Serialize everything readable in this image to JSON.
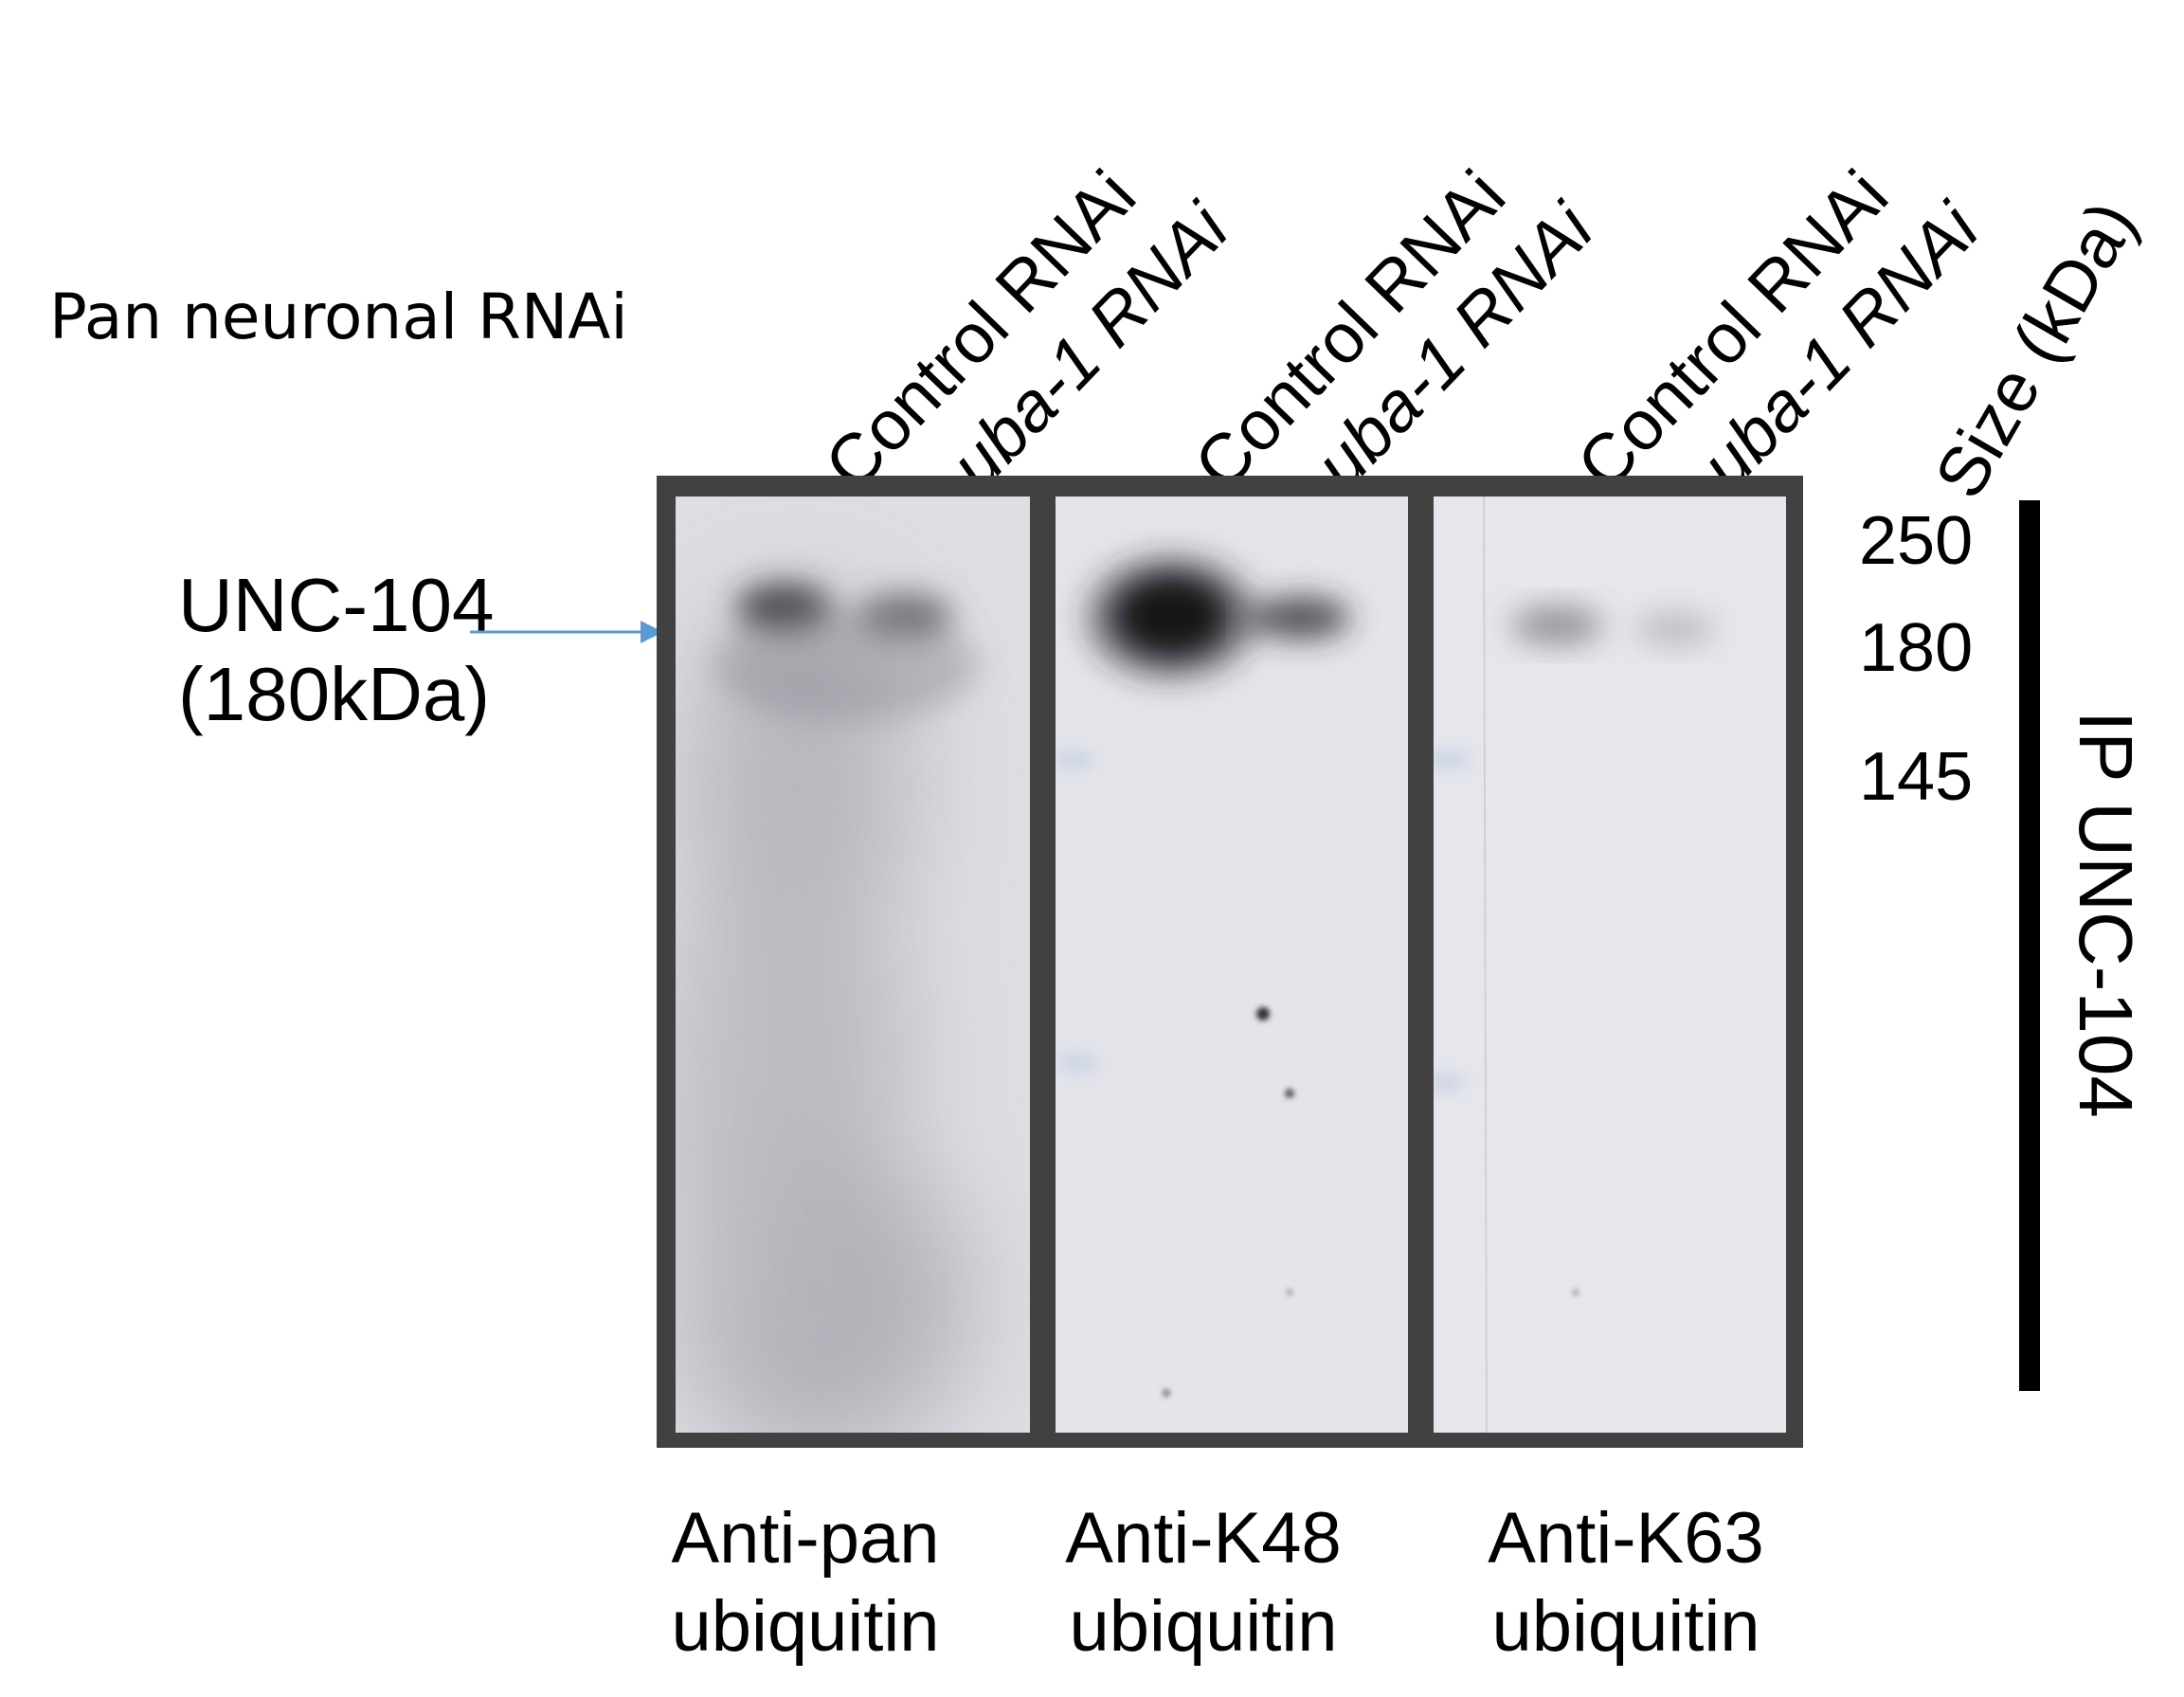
{
  "header": {
    "rnai_label": "Pan neuronal RNAi",
    "size_label": "Size (kDa)"
  },
  "lanes": [
    {
      "label": "Control RNAi",
      "italic": false
    },
    {
      "label": "uba-1 RNAi",
      "italic": true
    },
    {
      "label": "Control RNAi",
      "italic": false
    },
    {
      "label": "uba-1 RNAi",
      "italic": true
    },
    {
      "label": "Control RNAi",
      "italic": false
    },
    {
      "label": "uba-1 RNAi",
      "italic": true
    }
  ],
  "protein": {
    "name": "UNC-104",
    "size": "(180kDa)",
    "arrow_color": "#5b9bd5"
  },
  "markers": [
    "250",
    "180",
    "145"
  ],
  "ip_label": "IP UNC-104",
  "panels": [
    {
      "antibody_line1": "Anti-pan",
      "antibody_line2": "ubiquitin"
    },
    {
      "antibody_line1": "Anti-K48",
      "antibody_line2": "ubiquitin"
    },
    {
      "antibody_line1": "Anti-K63",
      "antibody_line2": "ubiquitin"
    }
  ],
  "colors": {
    "frame": "#414141",
    "membrane": "#e6e6ec",
    "band": "#000000"
  }
}
